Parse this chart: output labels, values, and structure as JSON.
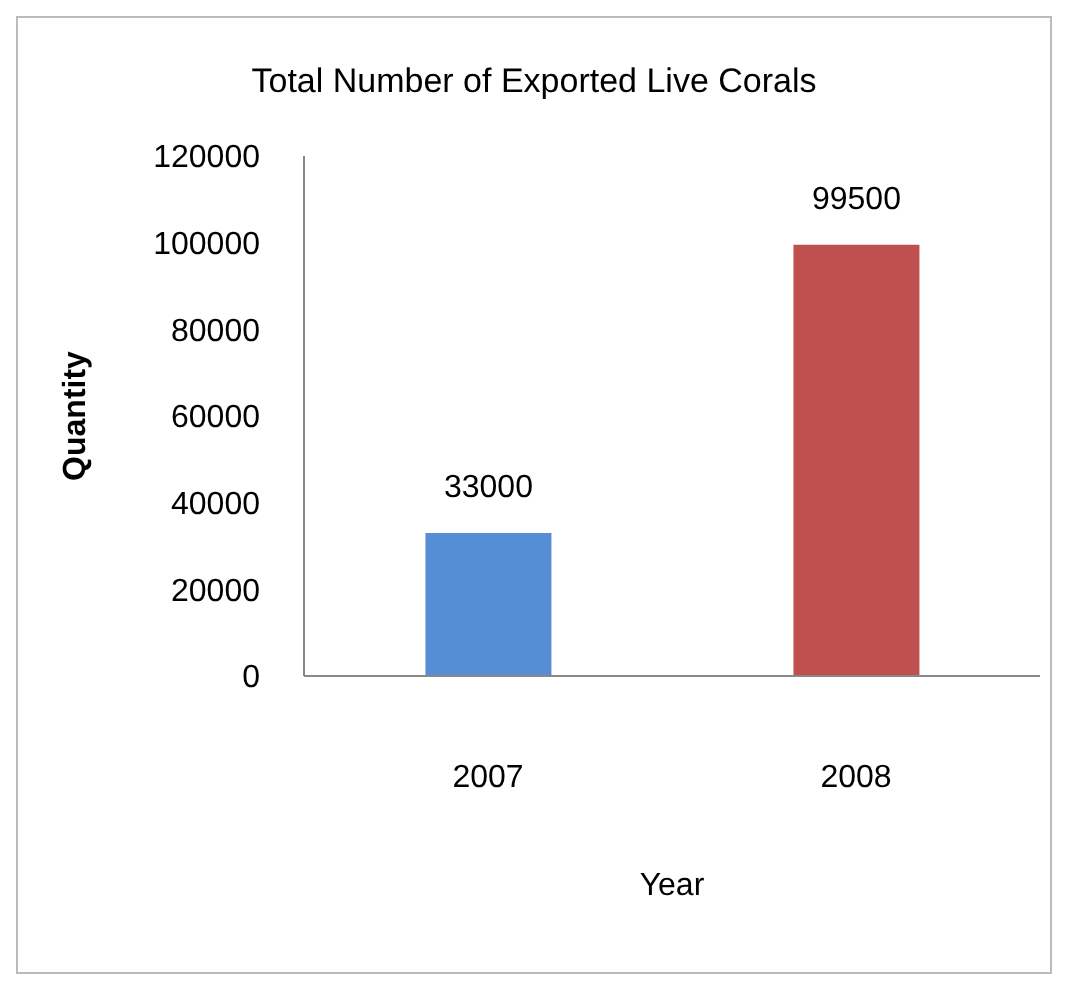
{
  "chart_data": {
    "type": "bar",
    "title": "Total Number of Exported Live Corals",
    "xlabel": "Year",
    "ylabel": "Quantity",
    "categories": [
      "2007",
      "2008"
    ],
    "values": [
      33000,
      99500
    ],
    "colors": [
      "#558ed5",
      "#c0504d"
    ],
    "ylim": [
      0,
      120000
    ],
    "yticks": [
      0,
      20000,
      40000,
      60000,
      80000,
      100000,
      120000
    ],
    "data_labels": true,
    "grid": false
  }
}
